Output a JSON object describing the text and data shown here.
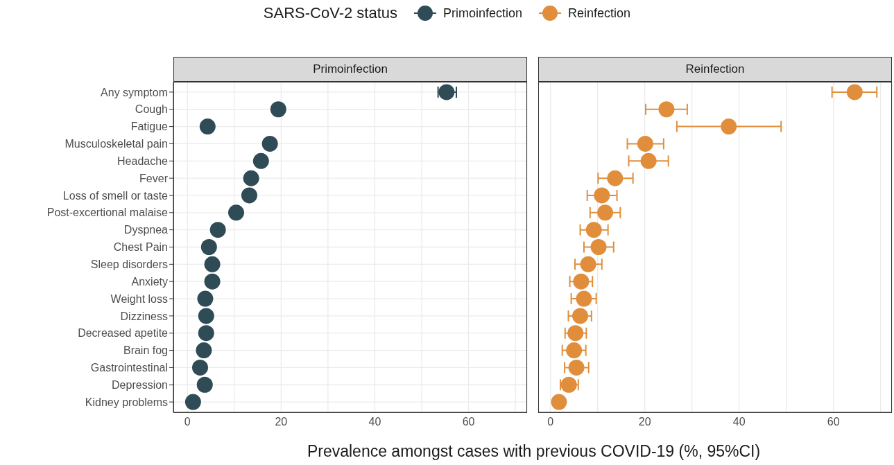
{
  "chart_data": [
    {
      "type": "scatter",
      "title": "Primoinfection",
      "orientation": "horizontal",
      "legend": "top",
      "legend_title": "SARS-CoV-2 status",
      "marker": "circle",
      "grid": true,
      "xlabel": "Prevalence amongst cases with previous COVID-19 (%, 95%CI)",
      "categories": [
        "Any symptom",
        "Cough",
        "Fatigue",
        "Musculoskeletal pain",
        "Headache",
        "Fever",
        "Loss of smell or taste",
        "Post-excertional malaise",
        "Dyspnea",
        "Chest Pain",
        "Sleep disorders",
        "Anxiety",
        "Weight loss",
        "Dizziness",
        "Decreased apetite",
        "Brain fog",
        "Gastrointestinal",
        "Depression",
        "Kidney problems"
      ],
      "xlim": [
        -3,
        72.5
      ],
      "xticks": [
        0,
        {
          "value": 10,
          "label": null
        },
        20,
        {
          "value": 30,
          "label": null
        },
        40,
        {
          "value": 50,
          "label": null
        },
        60,
        {
          "value": 70,
          "label": null
        }
      ],
      "series": [
        {
          "name": "Primoinfection",
          "color": "#2f4b55",
          "values": [
            55.3,
            19.4,
            4.3,
            17.6,
            15.7,
            13.6,
            13.2,
            10.4,
            6.5,
            4.6,
            5.3,
            5.3,
            3.8,
            4.0,
            4.0,
            3.5,
            2.7,
            3.7,
            1.2
          ],
          "errors": [
            [
              53.5,
              57.4
            ],
            null,
            null,
            null,
            null,
            null,
            null,
            null,
            null,
            null,
            null,
            null,
            null,
            null,
            null,
            null,
            null,
            null,
            null
          ]
        }
      ]
    },
    {
      "type": "scatter",
      "title": "Reinfection",
      "orientation": "horizontal",
      "marker": "circle",
      "grid": true,
      "tick_labels": "x",
      "xlim": [
        -2.6,
        72.4
      ],
      "xticks": [
        0,
        {
          "value": 10,
          "label": null
        },
        20,
        {
          "value": 30,
          "label": null
        },
        40,
        {
          "value": 50,
          "label": null
        },
        60,
        {
          "value": 70,
          "label": null
        }
      ],
      "series": [
        {
          "name": "Reinfection",
          "color": "#e08e3c",
          "values": [
            64.5,
            24.6,
            37.8,
            20.1,
            20.8,
            13.7,
            10.9,
            11.6,
            9.2,
            10.2,
            8.0,
            6.5,
            7.1,
            6.3,
            5.3,
            5.0,
            5.5,
            3.9,
            1.8
          ],
          "errors": [
            [
              59.7,
              69.2
            ],
            [
              20.2,
              29.0
            ],
            [
              26.8,
              48.9
            ],
            [
              16.3,
              24.0
            ],
            [
              16.6,
              25.0
            ],
            [
              10.1,
              17.5
            ],
            [
              7.8,
              14.1
            ],
            [
              8.4,
              14.8
            ],
            [
              6.3,
              12.2
            ],
            [
              7.1,
              13.4
            ],
            [
              5.2,
              10.9
            ],
            [
              4.1,
              8.9
            ],
            [
              4.4,
              9.7
            ],
            [
              3.8,
              8.7
            ],
            [
              3.1,
              7.6
            ],
            [
              2.5,
              7.5
            ],
            [
              3.0,
              8.1
            ],
            [
              2.1,
              5.9
            ],
            null
          ]
        }
      ]
    }
  ]
}
